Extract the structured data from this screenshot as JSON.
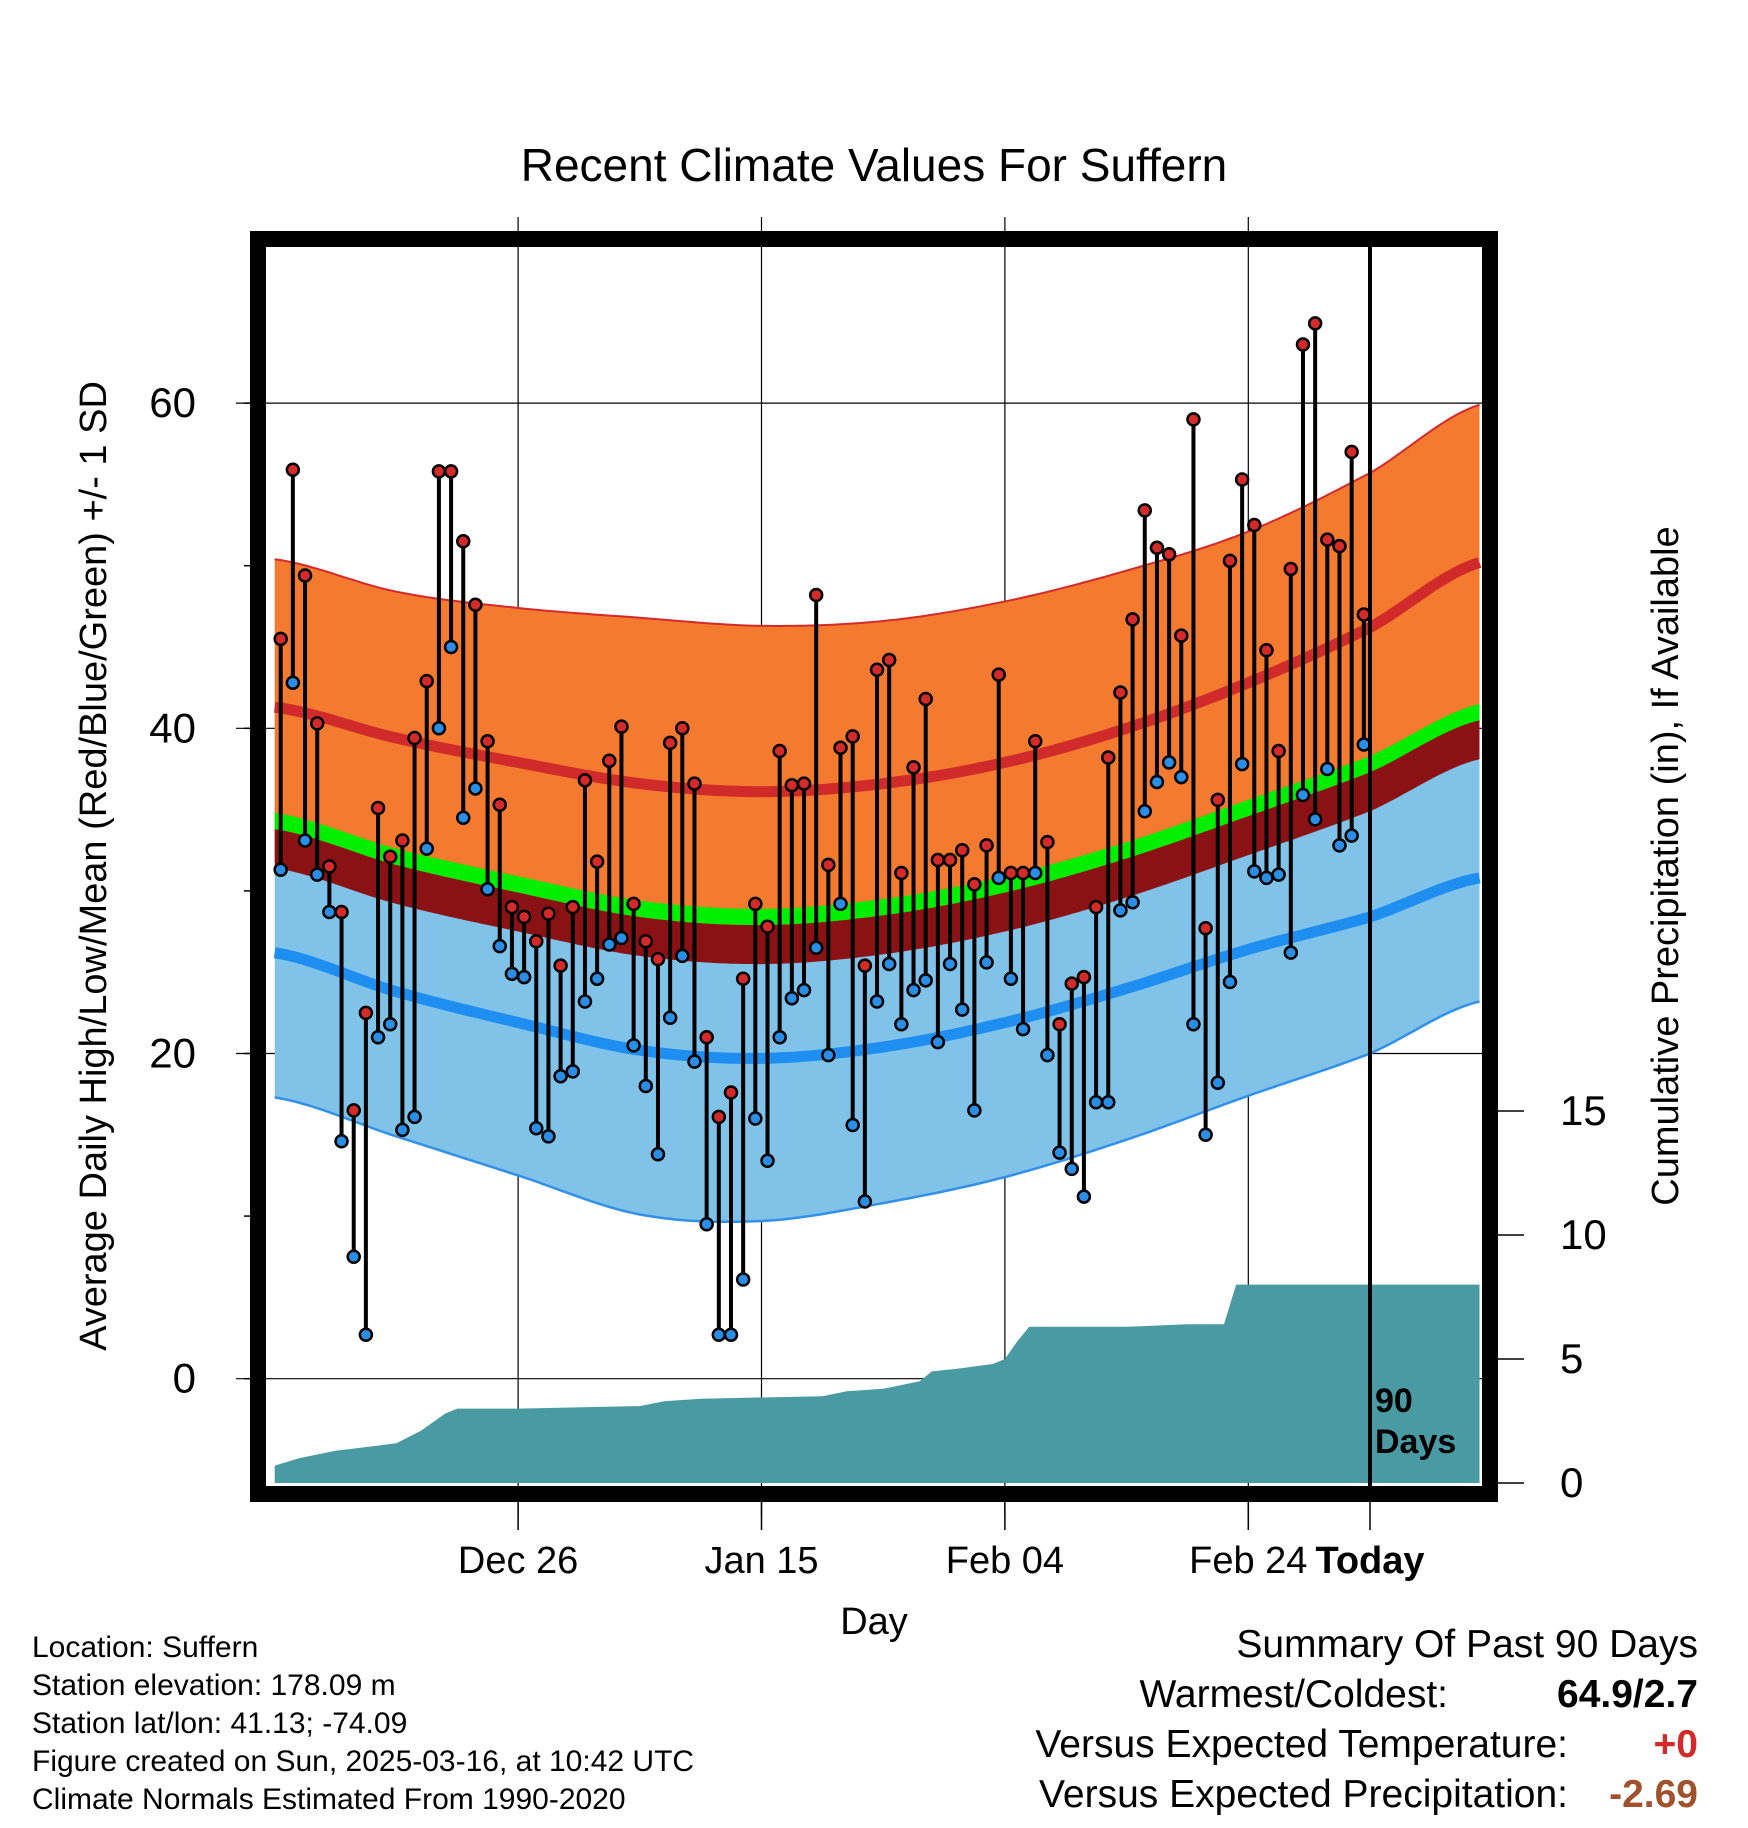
{
  "chart_data": {
    "type": "line",
    "title": "Recent Climate Values For Suffern",
    "xlabel": "Day",
    "ylabel": "Average Daily High/Low/Mean (Red/Blue/Green) +/- 1 SD",
    "y2label": "Cumulative Precipitation (in), If Available",
    "x_ticks": [
      "Dec 26",
      "Jan 15",
      "Feb 04",
      "Feb 24",
      "Today"
    ],
    "y_ticks": [
      0,
      20,
      40,
      60
    ],
    "y2_ticks": [
      0,
      5,
      10,
      15
    ],
    "ylim": [
      -6.6,
      69.6
    ],
    "y2lim": [
      0,
      15
    ],
    "xlim_days": [
      -90,
      9
    ],
    "today_marker_label": [
      "90",
      "Days"
    ],
    "grid": true,
    "colors": {
      "high_band": "#f47a30",
      "high_mean_line": "#d02a2a",
      "low_band": "#80c2e8",
      "low_mean_line": "#1e8ef0",
      "band_edge": "#3390e8",
      "mean_band": "#00ee00",
      "mean_dark_band": "#8b1214",
      "precip": "#4a9aa3",
      "obs_high": "#d42a2a",
      "obs_low": "#2a8ee6"
    },
    "normals": {
      "days": [
        -90,
        -80,
        -70,
        -60,
        -50,
        -40,
        -30,
        -20,
        -10,
        0,
        9
      ],
      "high_mean": [
        41.3,
        39.4,
        37.9,
        36.6,
        36.1,
        36.6,
        37.9,
        40.0,
        42.8,
        46.2,
        50.2
      ],
      "high_sd": [
        9.1,
        9.0,
        9.5,
        10.2,
        10.2,
        10.0,
        9.9,
        9.7,
        9.3,
        9.5,
        9.7
      ],
      "low_mean": [
        26.2,
        23.8,
        21.9,
        20.2,
        19.7,
        20.4,
        21.9,
        24.0,
        26.4,
        28.4,
        30.8
      ],
      "low_sd": [
        8.9,
        8.9,
        9.4,
        10.1,
        10.0,
        9.6,
        9.5,
        9.3,
        9.0,
        8.4,
        7.6
      ],
      "mean": [
        33.8,
        31.6,
        29.9,
        28.4,
        27.9,
        28.5,
        29.9,
        32.0,
        34.6,
        37.3,
        40.5
      ]
    },
    "observations": [
      {
        "day": -90,
        "high": 45.5,
        "low": 31.3
      },
      {
        "day": -89,
        "high": 55.9,
        "low": 42.8
      },
      {
        "day": -88,
        "high": 49.4,
        "low": 33.1
      },
      {
        "day": -87,
        "high": 40.3,
        "low": 31.0
      },
      {
        "day": -86,
        "high": 31.5,
        "low": 28.7
      },
      {
        "day": -85,
        "high": 28.7,
        "low": 14.6
      },
      {
        "day": -84,
        "high": 16.5,
        "low": 7.5
      },
      {
        "day": -83,
        "high": 22.5,
        "low": 2.7
      },
      {
        "day": -82,
        "high": 35.1,
        "low": 21.0
      },
      {
        "day": -81,
        "high": 32.1,
        "low": 21.8
      },
      {
        "day": -80,
        "high": 33.1,
        "low": 15.3
      },
      {
        "day": -79,
        "high": 39.4,
        "low": 16.1
      },
      {
        "day": -78,
        "high": 42.9,
        "low": 32.6
      },
      {
        "day": -77,
        "high": 55.8,
        "low": 40.0
      },
      {
        "day": -76,
        "high": 55.8,
        "low": 45.0
      },
      {
        "day": -75,
        "high": 51.5,
        "low": 34.5
      },
      {
        "day": -74,
        "high": 47.6,
        "low": 36.3
      },
      {
        "day": -73,
        "high": 39.2,
        "low": 30.1
      },
      {
        "day": -72,
        "high": 35.3,
        "low": 26.6
      },
      {
        "day": -71,
        "high": 29.0,
        "low": 24.9
      },
      {
        "day": -70,
        "high": 28.4,
        "low": 24.7
      },
      {
        "day": -69,
        "high": 26.9,
        "low": 15.4
      },
      {
        "day": -68,
        "high": 28.6,
        "low": 14.9
      },
      {
        "day": -67,
        "high": 25.4,
        "low": 18.6
      },
      {
        "day": -66,
        "high": 29.0,
        "low": 18.9
      },
      {
        "day": -65,
        "high": 36.8,
        "low": 23.2
      },
      {
        "day": -64,
        "high": 31.8,
        "low": 24.6
      },
      {
        "day": -63,
        "high": 38.0,
        "low": 26.7
      },
      {
        "day": -62,
        "high": 40.1,
        "low": 27.1
      },
      {
        "day": -61,
        "high": 29.2,
        "low": 20.5
      },
      {
        "day": -60,
        "high": 26.9,
        "low": 18.0
      },
      {
        "day": -59,
        "high": 25.8,
        "low": 13.8
      },
      {
        "day": -58,
        "high": 39.1,
        "low": 22.2
      },
      {
        "day": -57,
        "high": 40.0,
        "low": 26.0
      },
      {
        "day": -56,
        "high": 36.6,
        "low": 19.5
      },
      {
        "day": -55,
        "high": 21.0,
        "low": 9.5
      },
      {
        "day": -54,
        "high": 16.1,
        "low": 2.7
      },
      {
        "day": -53,
        "high": 17.6,
        "low": 2.7
      },
      {
        "day": -52,
        "high": 24.6,
        "low": 6.1
      },
      {
        "day": -51,
        "high": 29.2,
        "low": 16.0
      },
      {
        "day": -50,
        "high": 27.8,
        "low": 13.4
      },
      {
        "day": -49,
        "high": 38.6,
        "low": 21.0
      },
      {
        "day": -48,
        "high": 36.5,
        "low": 23.4
      },
      {
        "day": -47,
        "high": 36.6,
        "low": 23.9
      },
      {
        "day": -46,
        "high": 48.2,
        "low": 26.5
      },
      {
        "day": -45,
        "high": 31.6,
        "low": 19.9
      },
      {
        "day": -44,
        "high": 38.8,
        "low": 29.2
      },
      {
        "day": -43,
        "high": 39.5,
        "low": 15.6
      },
      {
        "day": -42,
        "high": 25.4,
        "low": 10.9
      },
      {
        "day": -41,
        "high": 43.6,
        "low": 23.2
      },
      {
        "day": -40,
        "high": 44.2,
        "low": 25.5
      },
      {
        "day": -39,
        "high": 31.1,
        "low": 21.8
      },
      {
        "day": -38,
        "high": 37.6,
        "low": 23.9
      },
      {
        "day": -37,
        "high": 41.8,
        "low": 24.5
      },
      {
        "day": -36,
        "high": 31.9,
        "low": 20.7
      },
      {
        "day": -35,
        "high": 31.9,
        "low": 25.5
      },
      {
        "day": -34,
        "high": 32.5,
        "low": 22.7
      },
      {
        "day": -33,
        "high": 30.4,
        "low": 16.5
      },
      {
        "day": -32,
        "high": 32.8,
        "low": 25.6
      },
      {
        "day": -31,
        "high": 43.3,
        "low": 30.8
      },
      {
        "day": -30,
        "high": 31.1,
        "low": 24.6
      },
      {
        "day": -29,
        "high": 31.1,
        "low": 21.5
      },
      {
        "day": -28,
        "high": 39.2,
        "low": 31.1
      },
      {
        "day": -27,
        "high": 33.0,
        "low": 19.9
      },
      {
        "day": -26,
        "high": 21.8,
        "low": 13.9
      },
      {
        "day": -25,
        "high": 24.3,
        "low": 12.9
      },
      {
        "day": -24,
        "high": 24.7,
        "low": 11.2
      },
      {
        "day": -23,
        "high": 29.0,
        "low": 17.0
      },
      {
        "day": -22,
        "high": 38.2,
        "low": 17.0
      },
      {
        "day": -21,
        "high": 42.2,
        "low": 28.8
      },
      {
        "day": -20,
        "high": 46.7,
        "low": 29.3
      },
      {
        "day": -19,
        "high": 53.4,
        "low": 34.9
      },
      {
        "day": -18,
        "high": 51.1,
        "low": 36.7
      },
      {
        "day": -17,
        "high": 50.7,
        "low": 37.9
      },
      {
        "day": -16,
        "high": 45.7,
        "low": 37.0
      },
      {
        "day": -15,
        "high": 59.0,
        "low": 21.8
      },
      {
        "day": -14,
        "high": 27.7,
        "low": 15.0
      },
      {
        "day": -13,
        "high": 35.6,
        "low": 18.2
      },
      {
        "day": -12,
        "high": 50.3,
        "low": 24.4
      },
      {
        "day": -11,
        "high": 55.3,
        "low": 37.8
      },
      {
        "day": -10,
        "high": 52.5,
        "low": 31.2
      },
      {
        "day": -9,
        "high": 44.8,
        "low": 30.8
      },
      {
        "day": -8,
        "high": 38.6,
        "low": 31.0
      },
      {
        "day": -7,
        "high": 49.8,
        "low": 26.2
      },
      {
        "day": -6,
        "high": 63.6,
        "low": 35.9
      },
      {
        "day": -5,
        "high": 64.9,
        "low": 34.4
      },
      {
        "day": -4,
        "high": 51.6,
        "low": 37.5
      },
      {
        "day": -3,
        "high": 51.2,
        "low": 32.8
      },
      {
        "day": -2,
        "high": 57.0,
        "low": 33.4
      },
      {
        "day": -1,
        "high": 47.0,
        "low": 39.0
      }
    ],
    "precip_cumulative": {
      "days": [
        -90,
        -88,
        -85,
        -80,
        -78,
        -76,
        -75,
        -70,
        -60,
        -58,
        -55,
        -45,
        -43,
        -40,
        -37,
        -36,
        -34,
        -31,
        -30,
        -29,
        -28,
        -27,
        -20,
        -15,
        -12,
        -11,
        -8,
        -5,
        0,
        9
      ],
      "values": [
        0.7,
        1.0,
        1.3,
        1.6,
        2.1,
        2.8,
        3.0,
        3.0,
        3.1,
        3.3,
        3.4,
        3.5,
        3.7,
        3.8,
        4.1,
        4.5,
        4.6,
        4.8,
        5.0,
        5.7,
        6.3,
        6.3,
        6.3,
        6.4,
        6.4,
        8.0,
        8.0,
        8.0,
        8.0,
        8.0
      ]
    }
  },
  "footer": {
    "location": "Location: Suffern",
    "elevation": "Station elevation: 178.09 m",
    "latlon": "Station lat/lon: 41.13; -74.09",
    "created": "Figure created on Sun, 2025-03-16, at 10:42 UTC",
    "normals": "Climate Normals Estimated From 1990-2020"
  },
  "summary": {
    "title": "Summary Of Past 90 Days",
    "warm_cold_label": "Warmest/Coldest:",
    "warm_cold_value": "64.9/2.7",
    "temp_label": "Versus Expected Temperature:",
    "temp_value": "+0",
    "temp_value_color": "#d42a2a",
    "precip_label": "Versus Expected Precipitation:",
    "precip_value": "-2.69",
    "precip_value_color": "#a0522d"
  }
}
